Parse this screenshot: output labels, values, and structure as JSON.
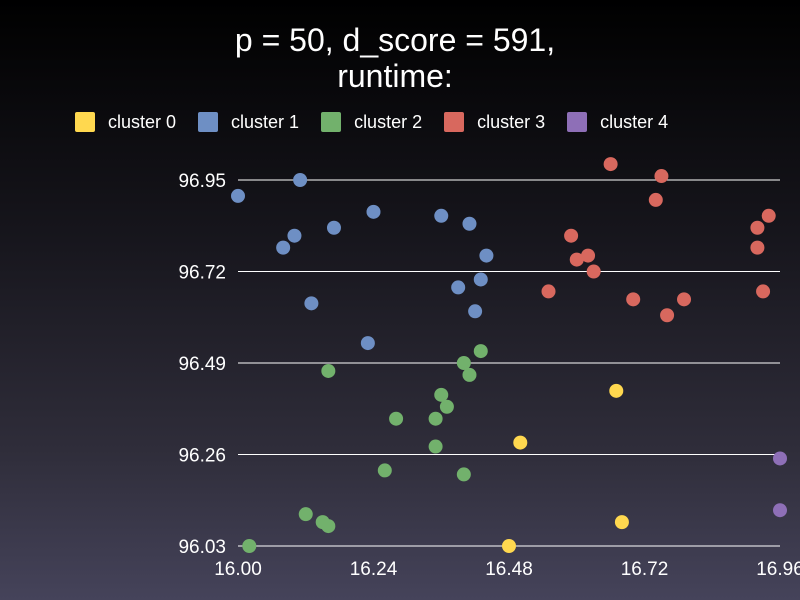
{
  "chart_data": {
    "type": "scatter",
    "title_lines": [
      "p = 50, d_score = 591,",
      "runtime:"
    ],
    "xlim": [
      16.0,
      16.96
    ],
    "ylim": [
      96.03,
      96.95
    ],
    "x_ticks": [
      "16.00",
      "16.24",
      "16.48",
      "16.72",
      "16.96"
    ],
    "y_ticks": [
      "96.95",
      "96.72",
      "96.49",
      "96.26",
      "96.03"
    ],
    "grid": "horizontal",
    "legend_position": "top",
    "series": [
      {
        "name": "cluster 0",
        "color": "#ffd84f",
        "points": [
          [
            16.67,
            96.42
          ],
          [
            16.5,
            96.29
          ],
          [
            16.68,
            96.09
          ],
          [
            16.48,
            96.03
          ]
        ]
      },
      {
        "name": "cluster 1",
        "color": "#6e8fc4",
        "points": [
          [
            16.0,
            96.91
          ],
          [
            16.11,
            96.95
          ],
          [
            16.24,
            96.87
          ],
          [
            16.36,
            96.86
          ],
          [
            16.41,
            96.84
          ],
          [
            16.17,
            96.83
          ],
          [
            16.1,
            96.81
          ],
          [
            16.08,
            96.78
          ],
          [
            16.44,
            96.76
          ],
          [
            16.43,
            96.7
          ],
          [
            16.39,
            96.68
          ],
          [
            16.13,
            96.64
          ],
          [
            16.42,
            96.62
          ],
          [
            16.23,
            96.54
          ]
        ]
      },
      {
        "name": "cluster 2",
        "color": "#72b16c",
        "points": [
          [
            16.43,
            96.52
          ],
          [
            16.4,
            96.49
          ],
          [
            16.41,
            96.46
          ],
          [
            16.16,
            96.47
          ],
          [
            16.36,
            96.41
          ],
          [
            16.37,
            96.38
          ],
          [
            16.28,
            96.35
          ],
          [
            16.35,
            96.35
          ],
          [
            16.35,
            96.28
          ],
          [
            16.26,
            96.22
          ],
          [
            16.4,
            96.21
          ],
          [
            16.12,
            96.11
          ],
          [
            16.15,
            96.09
          ],
          [
            16.16,
            96.08
          ],
          [
            16.02,
            96.03
          ]
        ]
      },
      {
        "name": "cluster 3",
        "color": "#d8685e",
        "points": [
          [
            16.66,
            96.99
          ],
          [
            16.75,
            96.96
          ],
          [
            16.74,
            96.9
          ],
          [
            16.94,
            96.86
          ],
          [
            16.92,
            96.83
          ],
          [
            16.59,
            96.81
          ],
          [
            16.92,
            96.78
          ],
          [
            16.62,
            96.76
          ],
          [
            16.6,
            96.75
          ],
          [
            16.63,
            96.72
          ],
          [
            16.55,
            96.67
          ],
          [
            16.93,
            96.67
          ],
          [
            16.7,
            96.65
          ],
          [
            16.79,
            96.65
          ],
          [
            16.76,
            96.61
          ]
        ]
      },
      {
        "name": "cluster 4",
        "color": "#8e6fb7",
        "points": [
          [
            16.96,
            96.25
          ],
          [
            16.96,
            96.12
          ]
        ]
      }
    ]
  }
}
